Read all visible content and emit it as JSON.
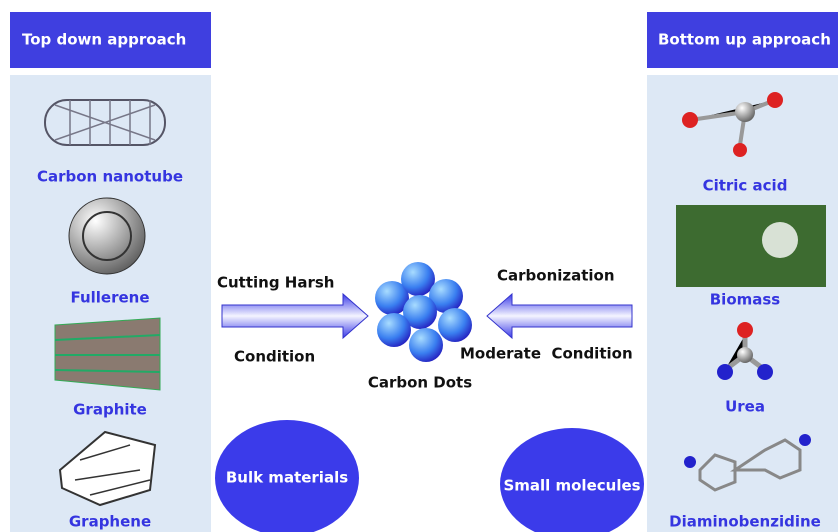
{
  "left": {
    "header": "Top down approach",
    "items": [
      "Carbon nanotube",
      "Fullerene",
      "Graphite",
      "Graphene"
    ]
  },
  "right": {
    "header": "Bottom up approach",
    "items": [
      "Citric acid",
      "Biomass",
      "Urea",
      "Diaminobenzidine"
    ]
  },
  "left_arrow": {
    "top": "Cutting Harsh",
    "bottom": "Condition"
  },
  "right_arrow": {
    "top": "Carbonization",
    "bottom": "Moderate  Condition"
  },
  "center": "Carbon Dots",
  "left_ellipse": "Bulk materials",
  "right_ellipse": "Small molecules"
}
